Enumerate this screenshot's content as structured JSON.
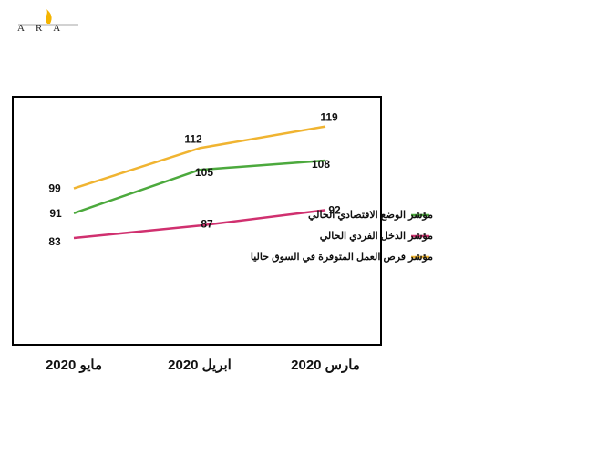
{
  "logo": {
    "text": "ARA",
    "flame_color": "#f4b400"
  },
  "chart_data": {
    "type": "line",
    "categories": [
      "مايو 2020",
      "ابريل 2020",
      "مارس 2020"
    ],
    "series": [
      {
        "name": "مؤشر الوضع الاقتصادي الحالي",
        "values": [
          91,
          105,
          108
        ],
        "color": "#4ca93d"
      },
      {
        "name": "مؤشر الدخل الفردي الحالي",
        "values": [
          83,
          87,
          92
        ],
        "color": "#d0306f"
      },
      {
        "name": "مؤشر فرص العمل المتوفرة في السوق حاليا",
        "values": [
          99,
          112,
          119
        ],
        "color": "#f0b431"
      }
    ],
    "data_labels": true,
    "grid": false,
    "legend_position": "right",
    "title": "",
    "xlabel": "",
    "ylabel": ""
  }
}
